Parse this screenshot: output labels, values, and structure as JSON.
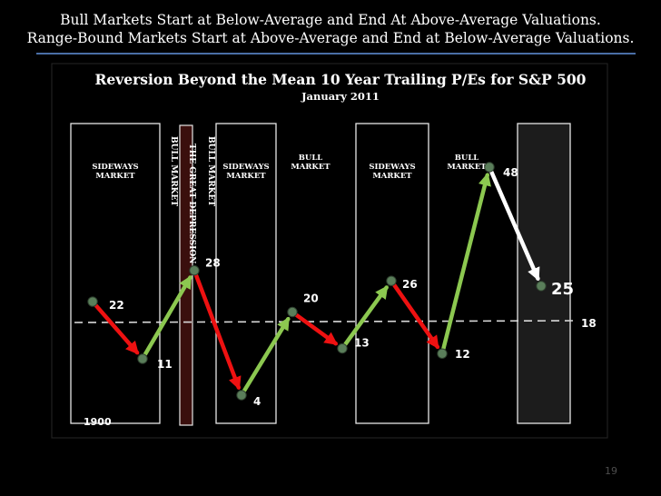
{
  "slide": {
    "title_line1": "Bull Markets Start at Below-Average and End At Above-Average Valuations.",
    "title_line2": "Range-Bound Markets Start at Above-Average and End at Below-Average Valuations.",
    "page_number": "19"
  },
  "chart_data": {
    "type": "line",
    "title": "Reversion Beyond the Mean 10 Year Trailing P/Es for S&P 500",
    "subtitle": "January 2011",
    "start_label": "1900",
    "mean_value": 18,
    "mean_label": "18",
    "points": [
      {
        "label": "22",
        "value": 22
      },
      {
        "label": "11",
        "value": 11
      },
      {
        "label": "28",
        "value": 28
      },
      {
        "label": "4",
        "value": 4
      },
      {
        "label": "20",
        "value": 20
      },
      {
        "label": "13",
        "value": 13
      },
      {
        "label": "26",
        "value": 26
      },
      {
        "label": "12",
        "value": 12
      },
      {
        "label": "48",
        "value": 48
      },
      {
        "label": "25",
        "value": 25
      }
    ],
    "segment_colors": [
      "red",
      "green",
      "red",
      "green",
      "red",
      "green",
      "red",
      "green",
      "white"
    ],
    "regions": [
      {
        "label_lines": [
          "SIDEWAYS",
          "MARKET"
        ],
        "orientation": "horizontal",
        "style": "box"
      },
      {
        "label_lines": [
          "BULL MARKET"
        ],
        "orientation": "vertical",
        "style": "none"
      },
      {
        "label_lines": [
          "THE GREAT DEPRESSION"
        ],
        "orientation": "vertical",
        "style": "depression"
      },
      {
        "label_lines": [
          "BULL MARKET"
        ],
        "orientation": "vertical",
        "style": "none"
      },
      {
        "label_lines": [
          "SIDEWAYS",
          "MARKET"
        ],
        "orientation": "horizontal",
        "style": "box"
      },
      {
        "label_lines": [
          "BULL",
          "MARKET"
        ],
        "orientation": "horizontal",
        "style": "none"
      },
      {
        "label_lines": [
          "SIDEWAYS",
          "MARKET"
        ],
        "orientation": "horizontal",
        "style": "box"
      },
      {
        "label_lines": [
          "BULL",
          "MARKET"
        ],
        "orientation": "horizontal",
        "style": "none"
      },
      {
        "label_lines": [],
        "orientation": "horizontal",
        "style": "box-current"
      }
    ],
    "colors": {
      "red": "#ee1111",
      "green": "#8cc850",
      "white": "#ffffff",
      "point": "#5a7e5a",
      "box_fill": "#000000",
      "box_current_fill": "#1c1c1c",
      "depression_fill": "#3a0f0d",
      "mean_line": "#d9d9d9"
    }
  }
}
